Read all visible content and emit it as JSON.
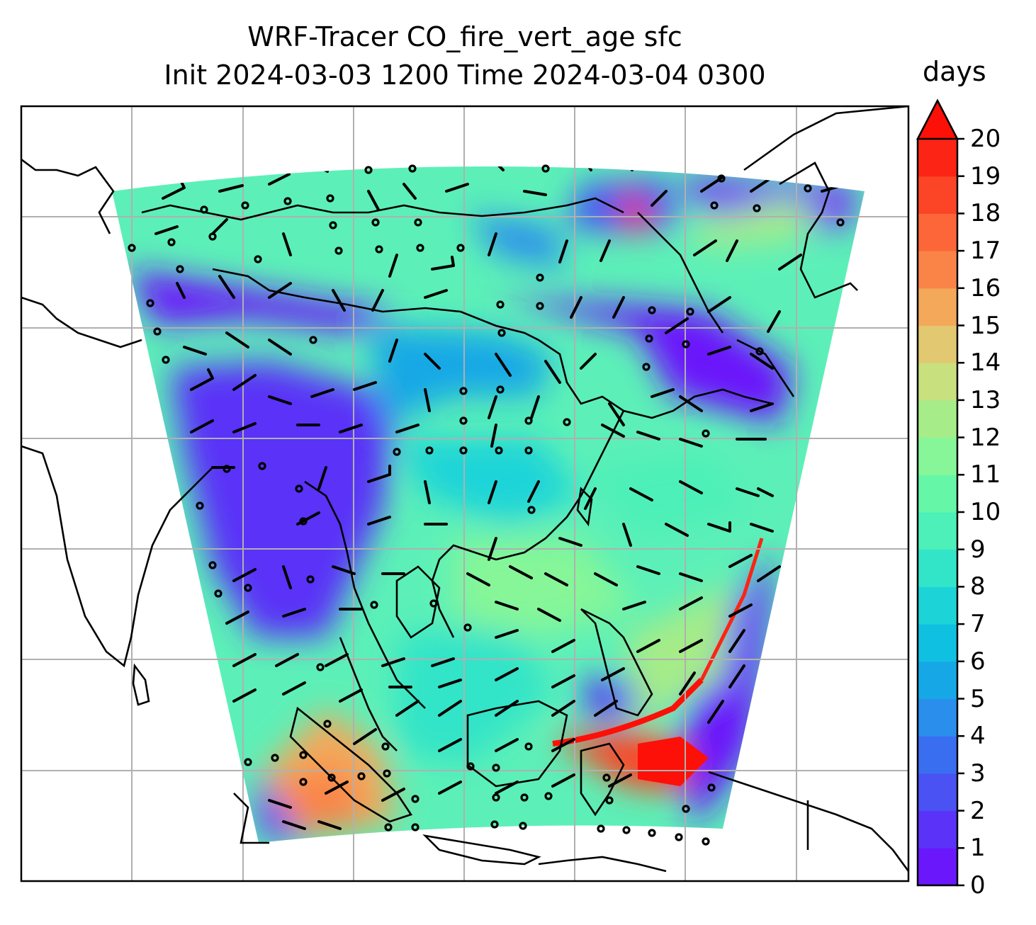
{
  "title": {
    "line1": "WRF-Tracer CO_fire_vert_age sfc",
    "line2": "Init 2024-03-03 1200 Time 2024-03-04 0300"
  },
  "colorbar": {
    "unit_label": "days",
    "ticks": [
      "0",
      "1",
      "2",
      "3",
      "4",
      "5",
      "6",
      "7",
      "8",
      "9",
      "10",
      "11",
      "12",
      "13",
      "14",
      "15",
      "16",
      "17",
      "18",
      "19",
      "20"
    ],
    "extend": "max",
    "colors": [
      "#6a18fb",
      "#5a32f8",
      "#4a52f4",
      "#3a6ef0",
      "#2a8eec",
      "#16a8e6",
      "#10c0e0",
      "#1cd4d8",
      "#32e4c8",
      "#4cf0b8",
      "#66f6a8",
      "#86f698",
      "#a6ec88",
      "#c8e07e",
      "#e2c870",
      "#f4a85a",
      "#fa8448",
      "#fc6638",
      "#fc4426",
      "#fc2414",
      "#fc1008"
    ]
  },
  "map": {
    "field": "CO_fire_vert_age",
    "level": "sfc",
    "gridlines": true,
    "overlay": "wind barbs and calm-wind circles",
    "coastlines": true
  }
}
